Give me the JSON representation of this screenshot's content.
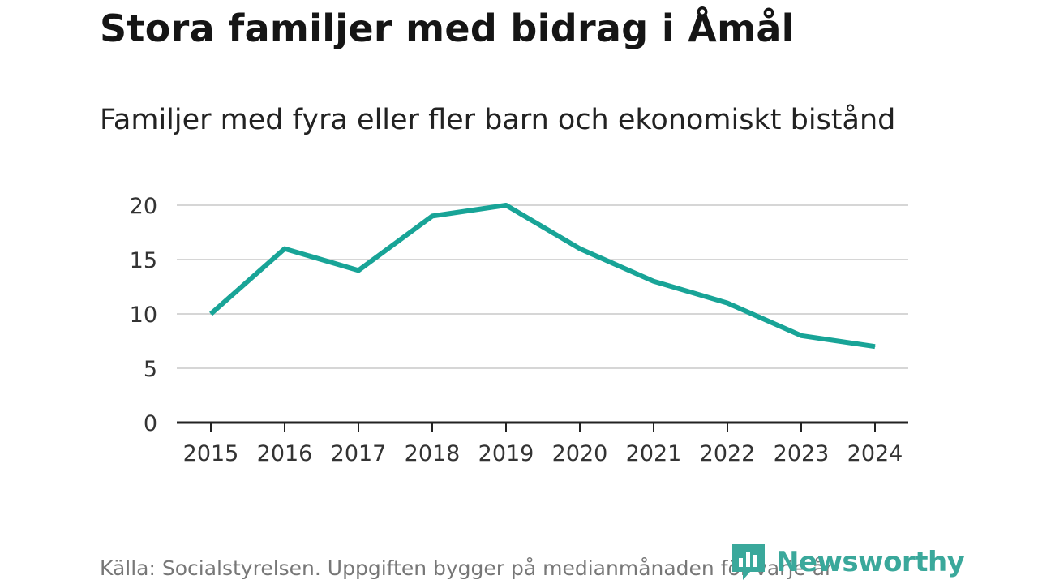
{
  "chart_data": {
    "type": "line",
    "title": "Stora familjer med bidrag i Åmål",
    "subtitle": "Familjer med fyra eller fler barn och ekonomiskt bistånd",
    "x": [
      "2015",
      "2016",
      "2017",
      "2018",
      "2019",
      "2020",
      "2021",
      "2022",
      "2023",
      "2024"
    ],
    "series": [
      {
        "name": "Familjer med fyra eller fler barn och ekonomiskt bistånd",
        "values": [
          10,
          16,
          14,
          19,
          20,
          16,
          13,
          11,
          8,
          7
        ]
      }
    ],
    "ylim": [
      0,
      20
    ],
    "yticks": [
      "0",
      "5",
      "10",
      "15",
      "20"
    ],
    "grid": true,
    "line_color": "#18a497",
    "source": "Källa: Socialstyrelsen. Uppgiften bygger på medianmånaden för varje år"
  },
  "logo": {
    "text": "Newsworthy",
    "icon": "newsworthy-logo-icon",
    "color": "#3aa89b"
  }
}
